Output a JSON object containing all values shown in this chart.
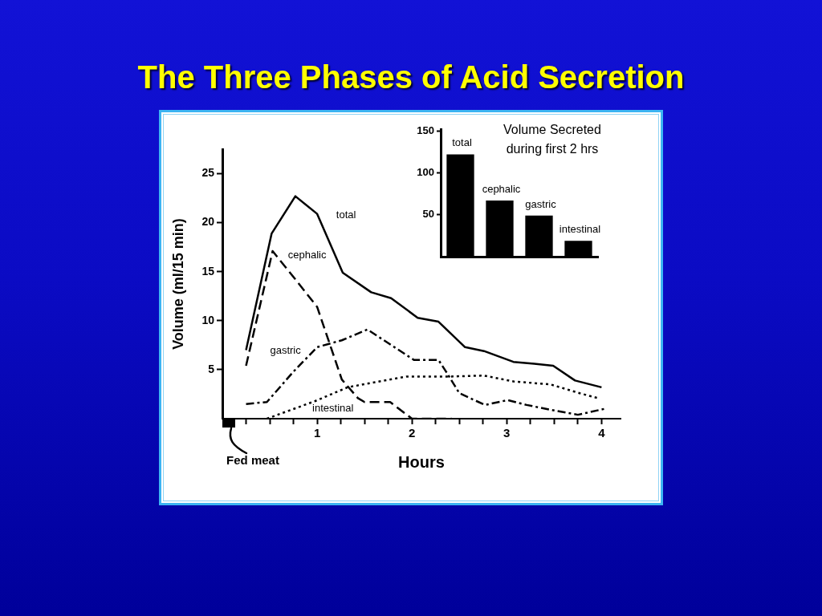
{
  "chart_data": [
    {
      "type": "line",
      "title": "The Three Phases of Acid Secretion",
      "xlabel": "Hours",
      "ylabel": "Volume (ml/15 min)",
      "xlim": [
        0,
        4.2
      ],
      "xticks": [
        {
          "value": 0.25,
          "label": null
        },
        {
          "value": 0.5,
          "label": null
        },
        {
          "value": 0.75,
          "label": null
        },
        1,
        {
          "value": 1.25,
          "label": null
        },
        {
          "value": 1.5,
          "label": null
        },
        {
          "value": 1.75,
          "label": null
        },
        2,
        {
          "value": 2.25,
          "label": null
        },
        {
          "value": 2.5,
          "label": null
        },
        {
          "value": 2.75,
          "label": null
        },
        3,
        {
          "value": 3.25,
          "label": null
        },
        {
          "value": 3.5,
          "label": null
        },
        {
          "value": 3.75,
          "label": null
        },
        4
      ],
      "ylim": [
        0,
        27.5
      ],
      "yticks": [
        5,
        10,
        15,
        20,
        25
      ],
      "annotations": [
        "Fed meat"
      ],
      "series": [
        {
          "name": "total",
          "color": "#000000",
          "line_style": "solid",
          "x": [
            0.25,
            0.52,
            0.77,
            1.0,
            1.27,
            1.57,
            1.78,
            2.06,
            2.28,
            2.56,
            2.76,
            3.07,
            3.29,
            3.49,
            3.72,
            4.0
          ],
          "values": [
            7.0,
            18.9,
            22.7,
            20.9,
            14.9,
            12.9,
            12.3,
            10.3,
            9.9,
            7.3,
            6.9,
            5.8,
            5.6,
            5.4,
            3.9,
            3.2
          ]
        },
        {
          "name": "cephalic",
          "color": "#000000",
          "line_style": "dashed",
          "x": [
            0.25,
            0.53,
            0.78,
            1.0,
            1.26,
            1.43,
            1.5,
            1.77,
            2.0,
            2.42
          ],
          "values": [
            5.4,
            17.1,
            14.1,
            11.4,
            4.0,
            2.1,
            1.7,
            1.7,
            0,
            0
          ]
        },
        {
          "name": "gastric",
          "color": "#000000",
          "line_style": "dashdot",
          "x": [
            0.25,
            0.47,
            0.75,
            1.0,
            1.26,
            1.53,
            2.02,
            2.28,
            2.36,
            2.5,
            2.77,
            3.01,
            3.21,
            3.52,
            3.75,
            4.03
          ],
          "values": [
            1.5,
            1.7,
            4.8,
            7.3,
            8.0,
            9.1,
            6.0,
            6.0,
            4.8,
            2.6,
            1.4,
            1.9,
            1.4,
            0.8,
            0.4,
            1.0
          ]
        },
        {
          "name": "intestinal",
          "color": "#000000",
          "line_style": "dotted",
          "x": [
            0.47,
            0.98,
            1.32,
            1.6,
            1.94,
            2.39,
            2.76,
            3.07,
            3.46,
            3.77,
            3.96
          ],
          "values": [
            0,
            1.8,
            3.2,
            3.7,
            4.3,
            4.3,
            4.4,
            3.8,
            3.5,
            2.6,
            2.1
          ]
        }
      ]
    },
    {
      "type": "bar",
      "title": "Volume Secreted during first 2 hrs",
      "categories": [
        "total",
        "cephalic",
        "gastric",
        "intestinal"
      ],
      "values": [
        122,
        67,
        49,
        19
      ],
      "color": "#000000",
      "ylim": [
        0,
        152
      ],
      "yticks": [
        50,
        100,
        150
      ]
    }
  ]
}
